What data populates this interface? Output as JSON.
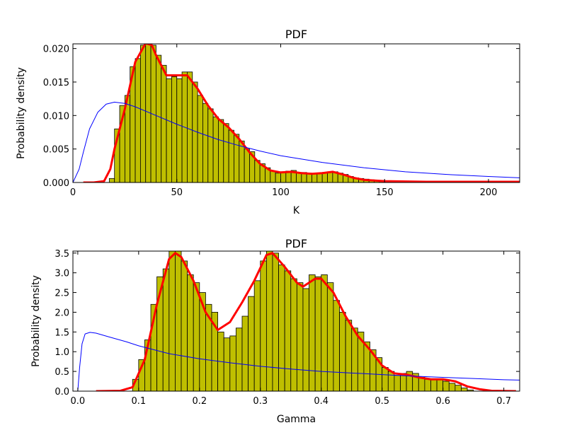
{
  "chart_data": [
    {
      "type": "histogram",
      "title": "PDF",
      "x_label": "K",
      "y_label": "Probability density",
      "color": "#bfbf00",
      "bins": [
        17.5,
        20,
        22.5,
        25,
        27.5,
        30,
        32.5,
        35,
        37.5,
        40,
        42.5,
        45,
        47.5,
        50,
        52.5,
        55,
        57.5,
        60,
        62.5,
        65,
        67.5,
        70,
        72.5,
        75,
        77.5,
        80,
        82.5,
        85,
        87.5,
        90,
        92.5,
        95,
        97.5,
        100,
        102.5,
        105,
        107.5,
        110,
        112.5,
        115,
        117.5,
        120,
        122.5,
        125,
        127.5,
        130,
        132.5,
        135,
        137.5,
        140,
        142.5,
        145,
        147.5,
        150,
        152.5,
        155
      ],
      "values": [
        0.0006,
        0.008,
        0.0115,
        0.013,
        0.0173,
        0.0185,
        0.0205,
        0.0207,
        0.0205,
        0.019,
        0.0175,
        0.0155,
        0.0158,
        0.0155,
        0.0165,
        0.0165,
        0.015,
        0.013,
        0.0118,
        0.011,
        0.0098,
        0.0094,
        0.0088,
        0.0078,
        0.0072,
        0.0062,
        0.005,
        0.0046,
        0.0033,
        0.0028,
        0.0022,
        0.0017,
        0.0014,
        0.0016,
        0.0017,
        0.0018,
        0.0014,
        0.0015,
        0.0014,
        0.0013,
        0.0014,
        0.0015,
        0.0016,
        0.0016,
        0.0014,
        0.0012,
        0.0009,
        0.0007,
        0.0006,
        0.0005,
        0.0004,
        0.0003,
        0.0003,
        0.0002,
        0.0001
      ],
      "lines": [
        {
          "color": "#ff0000",
          "width": 3,
          "x": [
            5,
            10,
            15,
            18,
            20,
            25,
            30,
            35,
            38,
            40,
            45,
            50,
            55,
            60,
            65,
            70,
            75,
            80,
            85,
            90,
            95,
            100,
            105,
            110,
            115,
            120,
            125,
            130,
            135,
            140,
            150,
            170,
            190,
            215
          ],
          "values": [
            0,
            0,
            0.0002,
            0.002,
            0.005,
            0.011,
            0.018,
            0.0208,
            0.0205,
            0.019,
            0.016,
            0.016,
            0.016,
            0.014,
            0.0115,
            0.0095,
            0.0082,
            0.0065,
            0.0045,
            0.0028,
            0.0018,
            0.0015,
            0.0016,
            0.0014,
            0.0013,
            0.0014,
            0.0016,
            0.0012,
            0.0007,
            0.0004,
            0.0002,
            0.0001,
            0.0001,
            0.0001
          ]
        },
        {
          "color": "#0000ff",
          "width": 1,
          "x": [
            0,
            3,
            5,
            8,
            12,
            16,
            20,
            25,
            30,
            40,
            50,
            60,
            70,
            80,
            90,
            100,
            120,
            140,
            160,
            180,
            200,
            215
          ],
          "values": [
            0,
            0.002,
            0.0045,
            0.008,
            0.0105,
            0.0117,
            0.012,
            0.0118,
            0.0113,
            0.01,
            0.0087,
            0.0075,
            0.0064,
            0.0055,
            0.0047,
            0.004,
            0.003,
            0.0022,
            0.0016,
            0.0012,
            0.0009,
            0.0007
          ]
        }
      ],
      "xlim": [
        0,
        215
      ],
      "ylim": [
        0,
        0.0207
      ],
      "xticks": [
        0,
        50,
        100,
        150,
        200
      ],
      "yticks": [
        {
          "value": 0,
          "label": "0.000"
        },
        {
          "value": 0.005,
          "label": "0.005"
        },
        {
          "value": 0.01,
          "label": "0.010"
        },
        {
          "value": 0.015,
          "label": "0.015"
        },
        {
          "value": 0.02,
          "label": "0.020"
        }
      ]
    },
    {
      "type": "histogram",
      "title": "PDF",
      "x_label": "Gamma",
      "y_label": "Probability density",
      "color": "#bfbf00",
      "bins": [
        0.09,
        0.1,
        0.11,
        0.12,
        0.13,
        0.14,
        0.15,
        0.16,
        0.17,
        0.18,
        0.19,
        0.2,
        0.21,
        0.22,
        0.23,
        0.24,
        0.25,
        0.26,
        0.27,
        0.28,
        0.29,
        0.3,
        0.31,
        0.32,
        0.33,
        0.34,
        0.35,
        0.36,
        0.37,
        0.38,
        0.39,
        0.4,
        0.41,
        0.42,
        0.43,
        0.44,
        0.45,
        0.46,
        0.47,
        0.48,
        0.49,
        0.5,
        0.51,
        0.52,
        0.53,
        0.54,
        0.55,
        0.56,
        0.57,
        0.58,
        0.59,
        0.6,
        0.61,
        0.62,
        0.63,
        0.64,
        0.65
      ],
      "values": [
        0.3,
        0.8,
        1.3,
        2.2,
        2.9,
        3.1,
        3.6,
        3.6,
        3.3,
        2.95,
        2.75,
        2.5,
        2.2,
        2.0,
        1.5,
        1.35,
        1.4,
        1.6,
        1.9,
        2.4,
        2.8,
        3.3,
        3.6,
        3.5,
        3.2,
        3.05,
        2.85,
        2.75,
        2.6,
        2.95,
        2.9,
        2.95,
        2.75,
        2.3,
        2.0,
        1.8,
        1.6,
        1.5,
        1.25,
        1.05,
        0.85,
        0.6,
        0.5,
        0.4,
        0.45,
        0.5,
        0.45,
        0.35,
        0.3,
        0.3,
        0.3,
        0.25,
        0.2,
        0.15,
        0.08,
        0.03
      ],
      "lines": [
        {
          "color": "#ff0000",
          "width": 3,
          "x": [
            0.03,
            0.07,
            0.09,
            0.11,
            0.13,
            0.15,
            0.16,
            0.17,
            0.19,
            0.21,
            0.23,
            0.25,
            0.27,
            0.29,
            0.31,
            0.32,
            0.34,
            0.36,
            0.37,
            0.39,
            0.4,
            0.42,
            0.44,
            0.46,
            0.48,
            0.5,
            0.52,
            0.54,
            0.56,
            0.58,
            0.6,
            0.62,
            0.64,
            0.66,
            0.68,
            0.72
          ],
          "values": [
            0,
            0.01,
            0.1,
            0.8,
            2.2,
            3.35,
            3.5,
            3.4,
            2.8,
            2.0,
            1.55,
            1.75,
            2.25,
            2.8,
            3.45,
            3.5,
            3.15,
            2.75,
            2.65,
            2.85,
            2.85,
            2.5,
            1.9,
            1.4,
            1.05,
            0.65,
            0.45,
            0.42,
            0.35,
            0.3,
            0.3,
            0.25,
            0.12,
            0.05,
            0.01,
            0
          ]
        },
        {
          "color": "#0000ff",
          "width": 1,
          "x": [
            0,
            0.003,
            0.007,
            0.012,
            0.02,
            0.03,
            0.05,
            0.08,
            0.1,
            0.15,
            0.2,
            0.25,
            0.3,
            0.35,
            0.4,
            0.45,
            0.5,
            0.55,
            0.6,
            0.65,
            0.7,
            0.726
          ],
          "values": [
            0,
            0.6,
            1.2,
            1.45,
            1.49,
            1.47,
            1.38,
            1.25,
            1.15,
            0.95,
            0.82,
            0.72,
            0.63,
            0.56,
            0.5,
            0.46,
            0.42,
            0.38,
            0.35,
            0.32,
            0.29,
            0.28
          ]
        }
      ],
      "xlim": [
        -0.008,
        0.726
      ],
      "ylim": [
        0,
        3.55
      ],
      "xticks": [
        {
          "value": 0,
          "label": "0.0"
        },
        0.1,
        0.2,
        0.3,
        0.4,
        0.5,
        0.6,
        0.7
      ],
      "yticks": [
        {
          "value": 0,
          "label": "0.0"
        },
        0.5,
        {
          "value": 1,
          "label": "1.0"
        },
        1.5,
        {
          "value": 2,
          "label": "2.0"
        },
        2.5,
        {
          "value": 3,
          "label": "3.0"
        },
        3.5
      ]
    }
  ]
}
